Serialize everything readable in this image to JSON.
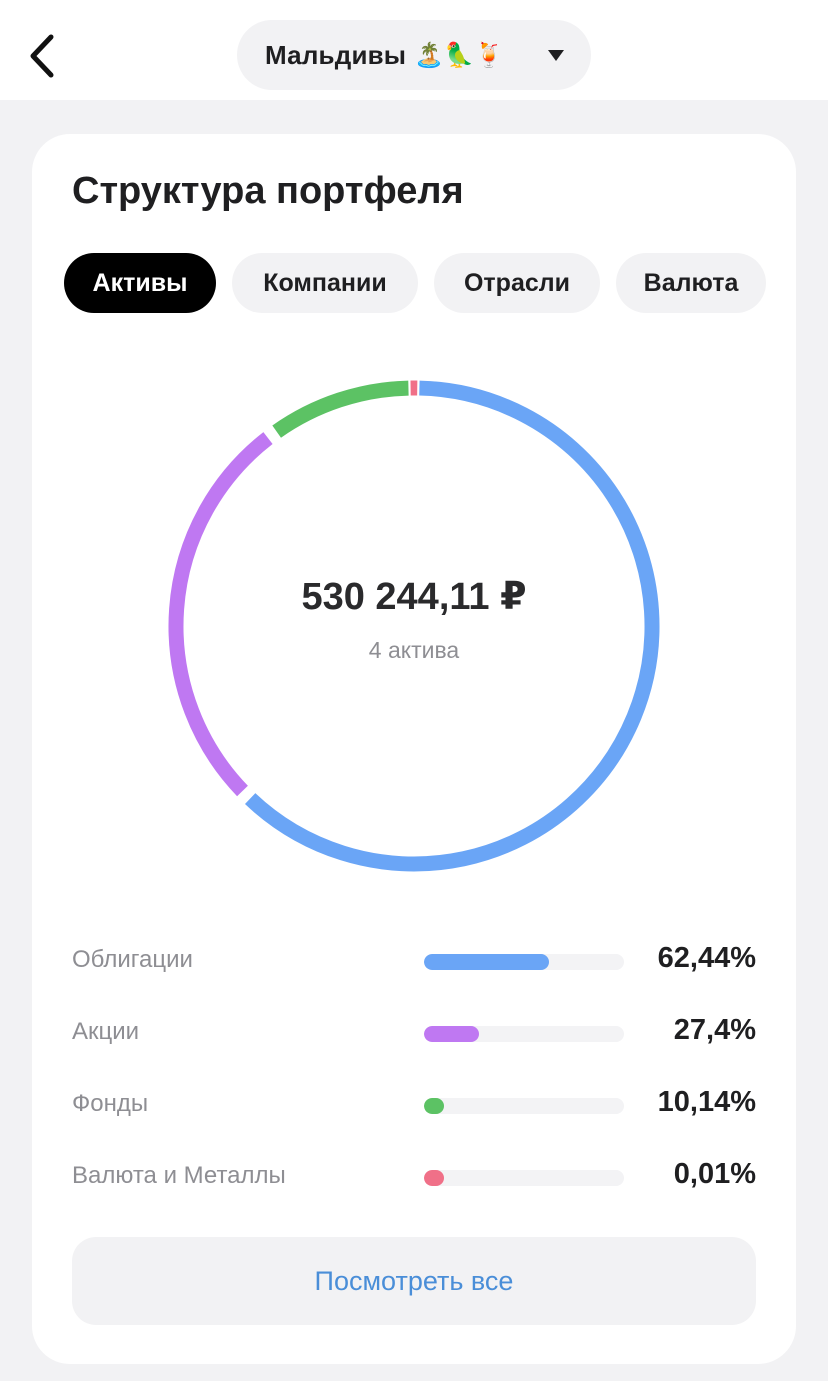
{
  "header": {
    "back_icon": "chevron-left-icon",
    "portfolio_name": "Мальдивы",
    "portfolio_emoji": "🏝️🦜🍹",
    "dropdown_icon": "caret-down-icon"
  },
  "card": {
    "title": "Структура портфеля",
    "tabs": [
      {
        "label": "Активы",
        "active": true
      },
      {
        "label": "Компании",
        "active": false
      },
      {
        "label": "Отрасли",
        "active": false
      },
      {
        "label": "Валюта",
        "active": false
      }
    ],
    "total": "530 244,11 ₽",
    "count_label": "4 актива",
    "assets": [
      {
        "label": "Облигации",
        "value_text": "62,44%",
        "percent": 62.44,
        "color": "#6aa5f6"
      },
      {
        "label": "Акции",
        "value_text": "27,4%",
        "percent": 27.4,
        "color": "#bf78f2"
      },
      {
        "label": "Фонды",
        "value_text": "10,14%",
        "percent": 10.14,
        "color": "#5cc264"
      },
      {
        "label": "Валюта и Металлы",
        "value_text": "0,01%",
        "percent": 0.01,
        "color": "#f07088"
      }
    ],
    "see_all_label": "Посмотреть все"
  }
}
